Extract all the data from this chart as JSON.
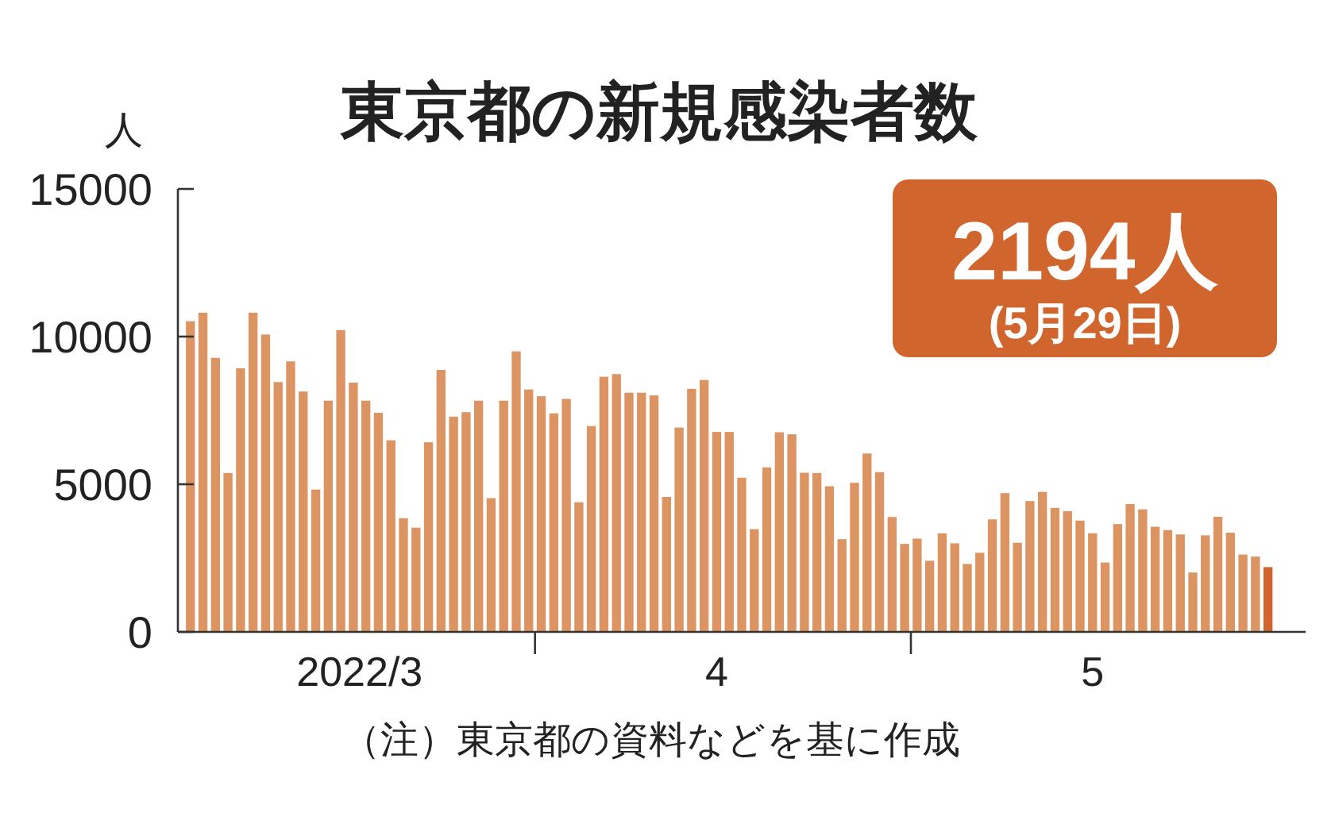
{
  "chart_data": {
    "type": "bar",
    "title": "東京都の新規感染者数",
    "ylabel": "人",
    "x": [
      "2022-03-04",
      "2022-03-05",
      "2022-03-06",
      "2022-03-07",
      "2022-03-08",
      "2022-03-09",
      "2022-03-10",
      "2022-03-11",
      "2022-03-12",
      "2022-03-13",
      "2022-03-14",
      "2022-03-15",
      "2022-03-16",
      "2022-03-17",
      "2022-03-18",
      "2022-03-19",
      "2022-03-20",
      "2022-03-21",
      "2022-03-22",
      "2022-03-23",
      "2022-03-24",
      "2022-03-25",
      "2022-03-26",
      "2022-03-27",
      "2022-03-28",
      "2022-03-29",
      "2022-03-30",
      "2022-03-31",
      "2022-04-01",
      "2022-04-02",
      "2022-04-03",
      "2022-04-04",
      "2022-04-05",
      "2022-04-06",
      "2022-04-07",
      "2022-04-08",
      "2022-04-09",
      "2022-04-10",
      "2022-04-11",
      "2022-04-12",
      "2022-04-13",
      "2022-04-14",
      "2022-04-15",
      "2022-04-16",
      "2022-04-17",
      "2022-04-18",
      "2022-04-19",
      "2022-04-20",
      "2022-04-21",
      "2022-04-22",
      "2022-04-23",
      "2022-04-24",
      "2022-04-25",
      "2022-04-26",
      "2022-04-27",
      "2022-04-28",
      "2022-04-29",
      "2022-04-30",
      "2022-05-01",
      "2022-05-02",
      "2022-05-03",
      "2022-05-04",
      "2022-05-05",
      "2022-05-06",
      "2022-05-07",
      "2022-05-08",
      "2022-05-09",
      "2022-05-10",
      "2022-05-11",
      "2022-05-12",
      "2022-05-13",
      "2022-05-14",
      "2022-05-15",
      "2022-05-16",
      "2022-05-17",
      "2022-05-18",
      "2022-05-19",
      "2022-05-20",
      "2022-05-21",
      "2022-05-22",
      "2022-05-23",
      "2022-05-24",
      "2022-05-25",
      "2022-05-26",
      "2022-05-27",
      "2022-05-28",
      "2022-05-29"
    ],
    "values": [
      10520,
      10810,
      9280,
      5380,
      8930,
      10810,
      10070,
      8460,
      9160,
      8140,
      4820,
      7830,
      10220,
      8440,
      7830,
      7420,
      6490,
      3850,
      3530,
      6420,
      8870,
      7290,
      7440,
      7830,
      4530,
      7830,
      9500,
      8210,
      7980,
      7400,
      7890,
      4390,
      6970,
      8640,
      8730,
      8100,
      8100,
      8010,
      4570,
      6920,
      8230,
      8530,
      6770,
      6770,
      5220,
      3480,
      5570,
      6760,
      6690,
      5390,
      5380,
      4930,
      3140,
      5050,
      6040,
      5410,
      3890,
      2980,
      3160,
      2410,
      3340,
      3000,
      2300,
      2680,
      3810,
      4700,
      3020,
      4430,
      4740,
      4200,
      4090,
      3770,
      3340,
      2350,
      3650,
      4330,
      4150,
      3560,
      3450,
      3300,
      2010,
      3270,
      3900,
      3360,
      2620,
      2550,
      2194
    ],
    "colors": [
      "#dc9463",
      "#dc9463",
      "#dc9463",
      "#dc9463",
      "#dc9463",
      "#dc9463",
      "#dc9463",
      "#dc9463",
      "#dc9463",
      "#dc9463",
      "#dc9463",
      "#dc9463",
      "#dc9463",
      "#dc9463",
      "#dc9463",
      "#dc9463",
      "#dc9463",
      "#dc9463",
      "#dc9463",
      "#dc9463",
      "#dc9463",
      "#dc9463",
      "#dc9463",
      "#dc9463",
      "#dc9463",
      "#dc9463",
      "#dc9463",
      "#dc9463",
      "#dc9463",
      "#dc9463",
      "#dc9463",
      "#dc9463",
      "#dc9463",
      "#dc9463",
      "#dc9463",
      "#dc9463",
      "#dc9463",
      "#dc9463",
      "#dc9463",
      "#dc9463",
      "#dc9463",
      "#dc9463",
      "#dc9463",
      "#dc9463",
      "#dc9463",
      "#dc9463",
      "#dc9463",
      "#dc9463",
      "#dc9463",
      "#dc9463",
      "#dc9463",
      "#dc9463",
      "#dc9463",
      "#dc9463",
      "#dc9463",
      "#dc9463",
      "#dc9463",
      "#dc9463",
      "#dc9463",
      "#dc9463",
      "#dc9463",
      "#dc9463",
      "#dc9463",
      "#dc9463",
      "#dc9463",
      "#dc9463",
      "#dc9463",
      "#dc9463",
      "#dc9463",
      "#dc9463",
      "#dc9463",
      "#dc9463",
      "#dc9463",
      "#dc9463",
      "#dc9463",
      "#dc9463",
      "#dc9463",
      "#dc9463",
      "#dc9463",
      "#dc9463",
      "#dc9463",
      "#dc9463",
      "#dc9463",
      "#dc9463",
      "#dc9463",
      "#dc9463",
      "#d0652e"
    ],
    "xlim": [
      "2022-03-03",
      "2022-06-01"
    ],
    "xticks": [
      {
        "value": "2022-03-17T12:00",
        "label": "2022/3"
      },
      {
        "value": "2022-03-31T12:00",
        "label": null
      },
      {
        "value": "2022-04-15",
        "label": "4"
      },
      {
        "value": "2022-04-30T12:00",
        "label": null
      },
      {
        "value": "2022-05-15",
        "label": "5"
      }
    ],
    "ylim": [
      0,
      15000
    ],
    "yticks": [
      0,
      5000,
      10000,
      15000
    ],
    "annotations": [
      "2194人",
      "(5月29日)",
      "（注）東京都の資料などを基に作成"
    ]
  }
}
